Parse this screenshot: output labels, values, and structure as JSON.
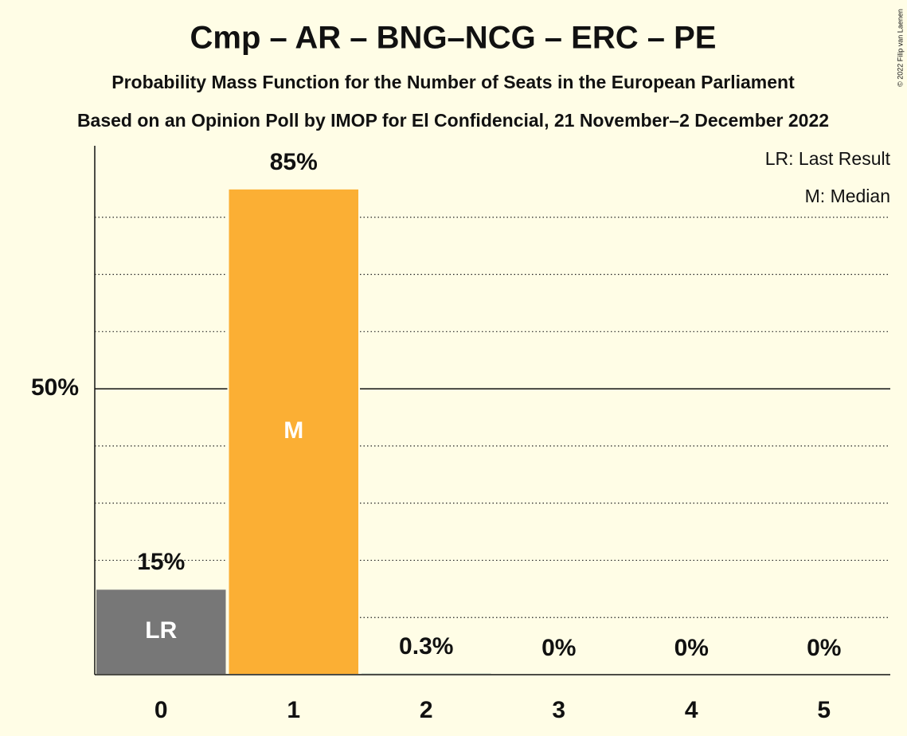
{
  "chart_data": {
    "type": "bar",
    "title": "Cmp – AR – BNG–NCG – ERC – PE",
    "subtitle": "Probability Mass Function for the Number of Seats in the European Parliament",
    "caption": "Based on an Opinion Poll by IMOP for El Confidencial, 21 November–2 December 2022",
    "credit": "© 2022 Filip van Laenen",
    "categories": [
      "0",
      "1",
      "2",
      "3",
      "4",
      "5"
    ],
    "values": [
      15,
      85,
      0.3,
      0,
      0,
      0
    ],
    "value_labels": [
      "15%",
      "85%",
      "0.3%",
      "0%",
      "0%",
      "0%"
    ],
    "colors": [
      "#777777",
      "#fbaf34",
      "#1a6b6b",
      "#1a6b6b",
      "#1a6b6b",
      "#1a6b6b"
    ],
    "bar_labels": [
      "LR",
      "M",
      null,
      null,
      null,
      null
    ],
    "legend": [
      "LR: Last Result",
      "M: Median"
    ],
    "ylim": [
      0,
      92.5
    ],
    "yticks": [
      {
        "value": 50,
        "label": "50%"
      }
    ],
    "minor_gridlines": [
      10,
      20,
      30,
      40,
      60,
      70,
      80
    ]
  }
}
